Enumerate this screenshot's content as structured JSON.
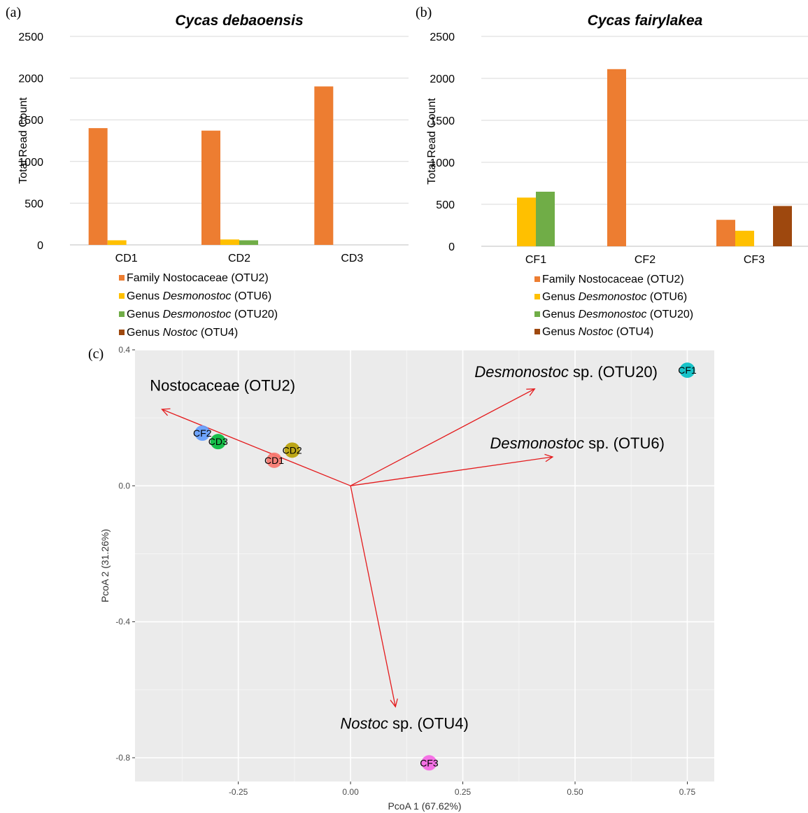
{
  "panels": {
    "a": "(a)",
    "b": "(b)",
    "c": "(c)"
  },
  "legend": [
    {
      "prefix": "Family",
      "name": "Nostocaceae",
      "italic": false,
      "otu": "(OTU2)",
      "color": "#ED7D31"
    },
    {
      "prefix": "Genus",
      "name": "Desmonostoc",
      "italic": true,
      "otu": "(OTU6)",
      "color": "#FFC000"
    },
    {
      "prefix": "Genus",
      "name": "Desmonostoc",
      "italic": true,
      "otu": "(OTU20)",
      "color": "#70AD47"
    },
    {
      "prefix": "Genus",
      "name": "Nostoc",
      "italic": true,
      "otu": "(OTU4)",
      "color": "#9E480E"
    }
  ],
  "chart_data": [
    {
      "type": "bar",
      "panel": "a",
      "title": "Cycas debaoensis",
      "ylabel": "Total Read Count",
      "ylim": [
        0,
        2500
      ],
      "yticks": [
        0,
        500,
        1000,
        1500,
        2000,
        2500
      ],
      "categories": [
        "CD1",
        "CD2",
        "CD3"
      ],
      "series": [
        {
          "name": "Family Nostocaceae (OTU2)",
          "values": [
            1400,
            1370,
            1900
          ]
        },
        {
          "name": "Genus Desmonostoc (OTU6)",
          "values": [
            55,
            65,
            0
          ]
        },
        {
          "name": "Genus Desmonostoc (OTU20)",
          "values": [
            0,
            55,
            0
          ]
        },
        {
          "name": "Genus Nostoc (OTU4)",
          "values": [
            0,
            0,
            0
          ]
        }
      ],
      "grid": "horizontal",
      "legend": "bottom"
    },
    {
      "type": "bar",
      "panel": "b",
      "title": "Cycas fairylakea",
      "ylabel": "Total Read Count",
      "ylim": [
        0,
        2500
      ],
      "yticks": [
        0,
        500,
        1000,
        1500,
        2000,
        2500
      ],
      "categories": [
        "CF1",
        "CF2",
        "CF3"
      ],
      "series": [
        {
          "name": "Family Nostocaceae (OTU2)",
          "values": [
            0,
            2110,
            315
          ]
        },
        {
          "name": "Genus Desmonostoc (OTU6)",
          "values": [
            580,
            0,
            185
          ]
        },
        {
          "name": "Genus Desmonostoc (OTU20)",
          "values": [
            650,
            0,
            0
          ]
        },
        {
          "name": "Genus Nostoc (OTU4)",
          "values": [
            0,
            0,
            480
          ]
        }
      ],
      "grid": "horizontal",
      "legend": "bottom"
    },
    {
      "type": "scatter",
      "panel": "c",
      "xlabel": "PcoA 1 (67.62%)",
      "ylabel": "PcoA 2 (31.26%)",
      "xlim": [
        -0.48,
        0.81
      ],
      "ylim": [
        -0.87,
        0.4
      ],
      "xticks": [
        -0.25,
        0.0,
        0.25,
        0.5,
        0.75
      ],
      "xtick_labels": [
        "-0.25",
        "0.00",
        "0.25",
        "0.50",
        "0.75"
      ],
      "yticks": [
        -0.8,
        -0.4,
        0.0,
        0.4
      ],
      "ytick_labels": [
        "-0.8",
        "-0.4",
        "0.0",
        "0.4"
      ],
      "points": [
        {
          "label": "CF2",
          "x": -0.33,
          "y": 0.155,
          "color": "#619CFF"
        },
        {
          "label": "CD3",
          "x": -0.295,
          "y": 0.13,
          "color": "#00BA38"
        },
        {
          "label": "CD1",
          "x": -0.17,
          "y": 0.075,
          "color": "#F8766D"
        },
        {
          "label": "CD2",
          "x": -0.13,
          "y": 0.105,
          "color": "#B79F00"
        },
        {
          "label": "CF1",
          "x": 0.75,
          "y": 0.34,
          "color": "#00BFC4"
        },
        {
          "label": "CF3",
          "x": 0.175,
          "y": -0.815,
          "color": "#F564E3"
        }
      ],
      "vectors": [
        {
          "label_main": "Nostocaceae",
          "label_rest": "(OTU2)",
          "italic_main": false,
          "x": -0.42,
          "y": 0.225
        },
        {
          "label_main": "Desmonostoc",
          "label_rest": "sp. (OTU20)",
          "italic_main": true,
          "x": 0.41,
          "y": 0.285
        },
        {
          "label_main": "Desmonostoc",
          "label_rest": "sp. (OTU6)",
          "italic_main": true,
          "x": 0.45,
          "y": 0.085
        },
        {
          "label_main": "Nostoc",
          "label_rest": "sp. (OTU4)",
          "italic_main": true,
          "x": 0.1,
          "y": -0.65
        }
      ],
      "vector_color": "#E41A1C",
      "background": "#EBEBEB",
      "grid": true
    }
  ]
}
